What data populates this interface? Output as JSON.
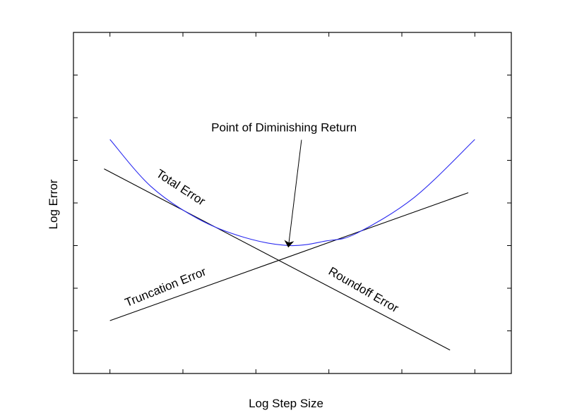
{
  "chart_data": {
    "type": "line",
    "title": "",
    "xlabel": "Log Step Size",
    "ylabel": "Log Error",
    "xlim": [
      0,
      12
    ],
    "ylim": [
      0,
      8
    ],
    "x_ticks": [
      1,
      3,
      5,
      7,
      9,
      11
    ],
    "y_ticks": [
      1,
      2,
      3,
      4,
      5,
      6,
      7
    ],
    "tick_labels_shown": false,
    "grid": false,
    "colors": {
      "total": "#2a2af0",
      "lines": "#000000"
    },
    "series": [
      {
        "name": "Roundoff Error",
        "x": [
          0.84,
          10.32
        ],
        "y": [
          4.8,
          0.55
        ]
      },
      {
        "name": "Truncation Error",
        "x": [
          1.0,
          10.82
        ],
        "y": [
          1.24,
          4.24
        ]
      },
      {
        "name": "Total Error",
        "x": [
          1.0,
          2.12,
          3.41,
          4.69,
          5.93,
          6.93,
          7.74,
          9.34,
          11.0
        ],
        "y": [
          5.49,
          4.39,
          3.63,
          3.19,
          3.0,
          3.11,
          3.28,
          4.13,
          5.49
        ]
      }
    ],
    "labels": [
      {
        "text": "Total Error",
        "x": 2.93,
        "y": 4.35,
        "angle": 33
      },
      {
        "text": "Truncation Error",
        "x": 2.53,
        "y": 2.01,
        "angle": -22
      },
      {
        "text": "Roundoff Error",
        "x": 7.94,
        "y": 1.95,
        "angle": 30
      }
    ],
    "annotation": {
      "text": "Point of Diminishing Return",
      "text_x": 5.77,
      "text_y": 5.78,
      "arrow_from": [
        6.25,
        5.48
      ],
      "arrow_to": [
        5.89,
        2.97
      ]
    }
  }
}
